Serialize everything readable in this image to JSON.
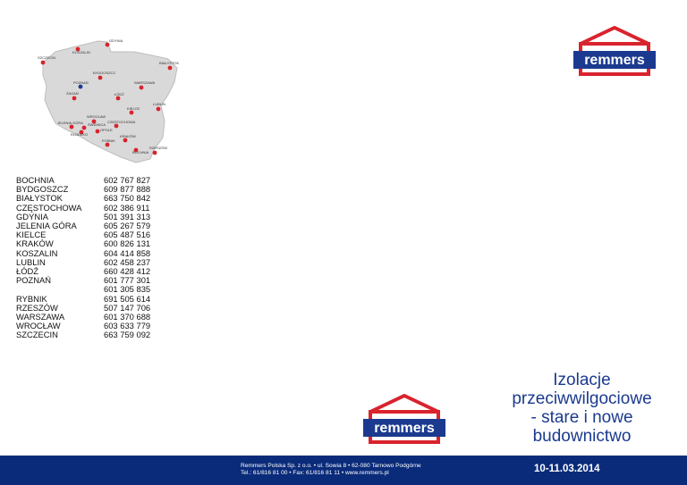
{
  "map": {
    "cities": [
      {
        "label": "GDYNIA",
        "dot": "red"
      },
      {
        "label": "KOSZALIN",
        "dot": "red"
      },
      {
        "label": "SZCZECIN",
        "dot": "red"
      },
      {
        "label": "BIAŁYSTOK",
        "dot": "red"
      },
      {
        "label": "BYDGOSZCZ",
        "dot": "red"
      },
      {
        "label": "POZNAŃ",
        "dot": "blue"
      },
      {
        "label": "WARSZAWA",
        "dot": "red"
      },
      {
        "label": "ŻAGAŃ",
        "dot": "red"
      },
      {
        "label": "ŁÓDŹ",
        "dot": "red"
      },
      {
        "label": "KIELCE",
        "dot": "red"
      },
      {
        "label": "LUBLIN",
        "dot": "red"
      },
      {
        "label": "WROCŁAW",
        "dot": "red"
      },
      {
        "label": "JELENIA GÓRA",
        "dot": "red"
      },
      {
        "label": "CZĘSTOCHOWA",
        "dot": "red"
      },
      {
        "label": "ŚWIDNICA",
        "dot": "red"
      },
      {
        "label": "OPOLE",
        "dot": "red"
      },
      {
        "label": "KŁODZKO",
        "dot": "red"
      },
      {
        "label": "KRAKÓW",
        "dot": "red"
      },
      {
        "label": "RYBNIK",
        "dot": "red"
      },
      {
        "label": "RZESZÓW",
        "dot": "red"
      },
      {
        "label": "BOCHNIA",
        "dot": "red"
      }
    ]
  },
  "contacts": [
    {
      "city": "BOCHNIA",
      "phone": "602 767 827"
    },
    {
      "city": "BYDGOSZCZ",
      "phone": "609 877 888"
    },
    {
      "city": "BIAŁYSTOK",
      "phone": "663 750 842"
    },
    {
      "city": "CZĘSTOCHOWA",
      "phone": "602 386 911"
    },
    {
      "city": "GDYNIA",
      "phone": "501 391 313"
    },
    {
      "city": "JELENIA GÓRA",
      "phone": "605 267 579"
    },
    {
      "city": "KIELCE",
      "phone": "605 487 516"
    },
    {
      "city": "KRAKÓW",
      "phone": "600 826 131"
    },
    {
      "city": "KOSZALIN",
      "phone": "604 414 858"
    },
    {
      "city": "LUBLIN",
      "phone": "602 458 237"
    },
    {
      "city": "ŁÓDŹ",
      "phone": "660 428 412"
    },
    {
      "city": "POZNAŃ",
      "phone": "601 777 301"
    },
    {
      "city": "",
      "phone": "601 305 835"
    },
    {
      "city": "RYBNIK",
      "phone": "691 505 614"
    },
    {
      "city": "RZESZÓW",
      "phone": "507 147 706"
    },
    {
      "city": "WARSZAWA",
      "phone": "601 370 688"
    },
    {
      "city": "WROCŁAW",
      "phone": "603 633 779"
    },
    {
      "city": "SZCZECIN",
      "phone": "663 759 092"
    }
  ],
  "brand": {
    "name": "remmers",
    "color": "#1b3a8f",
    "accent": "#d9232d"
  },
  "title": {
    "line1": "Izolacje",
    "line2": "przeciwwilgociowe",
    "line3": "- stare i nowe",
    "line4": "budownictwo"
  },
  "footer": {
    "address_line1": "Remmers Polska Sp. z o.o. • ul. Sowia 8 • 62-080 Tarnowo Podgórne",
    "address_line2": "Tel.: 61/816 81 00 • Fax: 61/816 81 11 • www.remmers.pl",
    "date": "10-11.03.2014"
  }
}
